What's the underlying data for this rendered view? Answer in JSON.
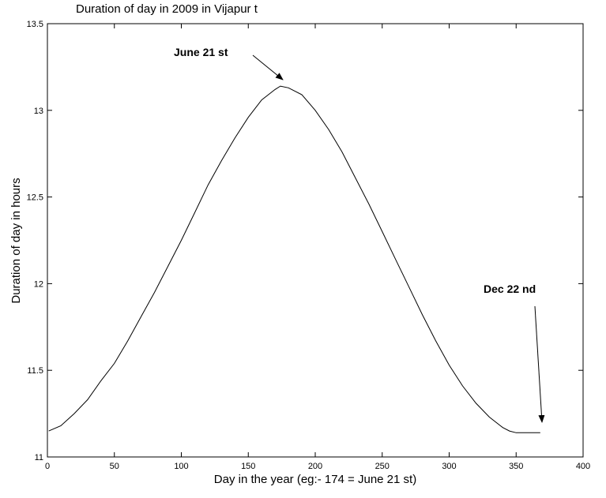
{
  "chart_data": {
    "type": "line",
    "title": "Duration of day in 2009 in Vijapur t",
    "xlabel": "Day in the year (eg:- 174 = June 21 st)",
    "ylabel": "Duration of day in hours",
    "xlim": [
      0,
      400
    ],
    "ylim": [
      11,
      13.5
    ],
    "xticks": [
      0,
      50,
      100,
      150,
      200,
      250,
      300,
      350,
      400
    ],
    "yticks": [
      11,
      11.5,
      12,
      12.5,
      13,
      13.5
    ],
    "grid": false,
    "series": [
      {
        "color": "#000000",
        "x": [
          1,
          10,
          20,
          30,
          40,
          50,
          60,
          70,
          80,
          90,
          100,
          110,
          120,
          130,
          140,
          150,
          160,
          170,
          174,
          180,
          190,
          200,
          210,
          220,
          230,
          240,
          250,
          260,
          270,
          280,
          290,
          300,
          310,
          320,
          330,
          340,
          345,
          350,
          356,
          360,
          365,
          368
        ],
        "y": [
          11.15,
          11.18,
          11.25,
          11.33,
          11.44,
          11.54,
          11.67,
          11.81,
          11.95,
          12.1,
          12.25,
          12.41,
          12.57,
          12.71,
          12.84,
          12.96,
          13.06,
          13.12,
          13.14,
          13.13,
          13.09,
          13.0,
          12.89,
          12.76,
          12.61,
          12.46,
          12.3,
          12.14,
          11.98,
          11.82,
          11.67,
          11.53,
          11.41,
          11.31,
          11.23,
          11.17,
          11.15,
          11.14,
          11.14,
          11.14,
          11.14,
          11.14
        ]
      }
    ],
    "annotations": [
      {
        "text": "June 21 st",
        "target_x": 174,
        "target_y": 13.14
      },
      {
        "text": "Dec 22 nd",
        "target_x": 360,
        "target_y": 11.16
      }
    ]
  }
}
